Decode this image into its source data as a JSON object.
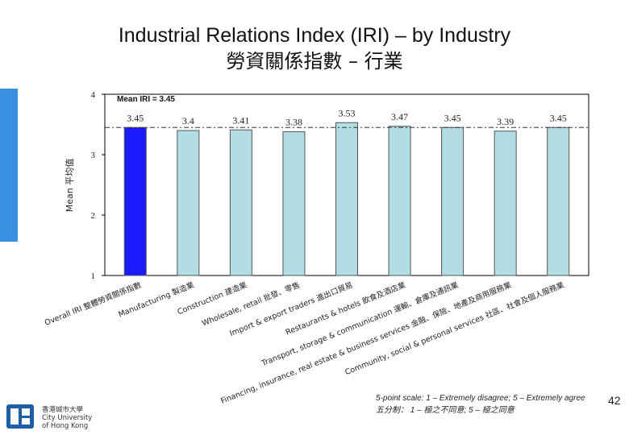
{
  "header": {
    "title_en": "Industrial Relations Index (IRI) – by Industry",
    "title_zh": "勞資關係指數 – 行業"
  },
  "chart_data": {
    "type": "bar",
    "ylabel": "Mean 平均值",
    "ylim": [
      1,
      4
    ],
    "yticks": [
      "1",
      "2",
      "3",
      "4"
    ],
    "mean_label": "Mean IRI = 3.45",
    "mean_value": 3.45,
    "categories": [
      "Overall IRI 整體勞資關係指數",
      "Manufacturing 製造業",
      "Construction 建造業",
      "Wholesale, retail 批發、零售",
      "Import & export traders 進出口貿易",
      "Restaurants & hotels 飲食及酒店業",
      "Transport, storage & communication 運輸、倉庫及通訊業",
      "Financing, insurance, real estate & business services 金融、保險、地產及商用服務業",
      "Community, social & personal services 社區、社會及個人服務業"
    ],
    "values": [
      3.45,
      3.4,
      3.41,
      3.38,
      3.53,
      3.47,
      3.45,
      3.39,
      3.45
    ],
    "value_labels": [
      "3.45",
      "3.4",
      "3.41",
      "3.38",
      "3.53",
      "3.47",
      "3.45",
      "3.39",
      "3.45"
    ],
    "colors": {
      "highlight": "#1a1aff",
      "bar": "#b3dde5",
      "bar_stroke": "#555555"
    }
  },
  "footer": {
    "scale_en": "5-point scale: 1 – Extremely disagree; 5 – Extremely agree",
    "scale_zh": "五分制： 1 – 極之不同意; 5 – 極之同意",
    "page_number": "42",
    "logo_name_zh": "香港城市大學",
    "logo_name_en_1": "City University",
    "logo_name_en_2": "of Hong Kong",
    "accent_color": "#3a8fe0",
    "logo_color": "#1f5fa8"
  }
}
